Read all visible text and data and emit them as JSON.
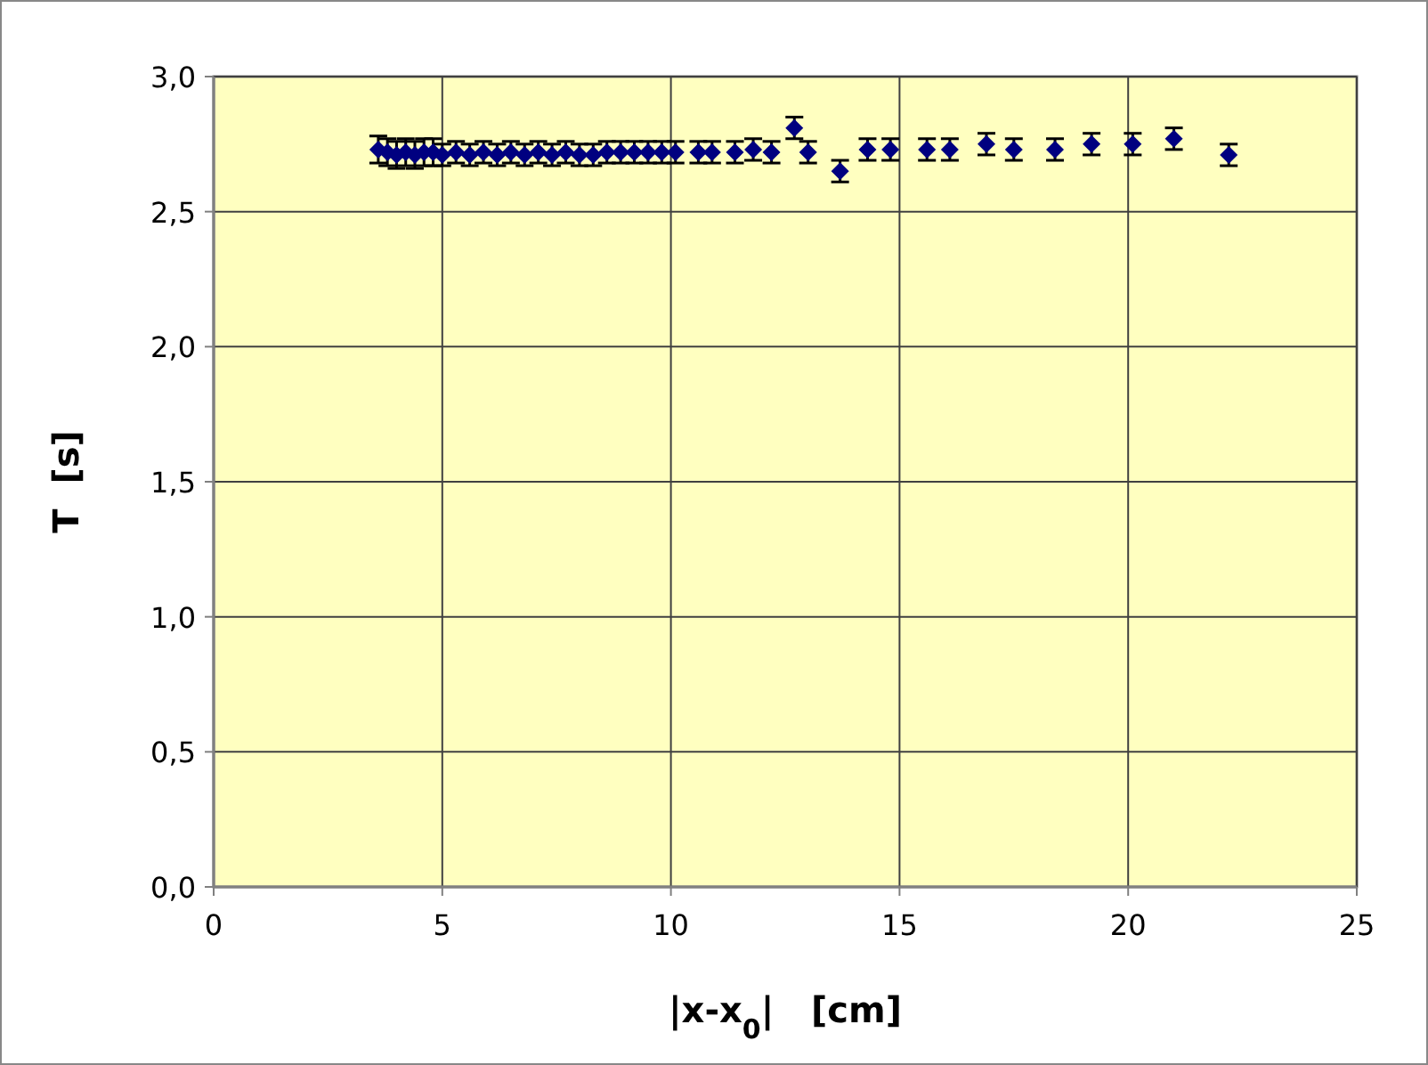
{
  "chart_data": {
    "type": "scatter",
    "xlabel": "|x-x$_{0}$|   [cm]",
    "ylabel": "T  [s]",
    "x": [
      3.6,
      3.8,
      4.0,
      4.2,
      4.4,
      4.6,
      4.8,
      5.0,
      5.3,
      5.6,
      5.9,
      6.2,
      6.5,
      6.8,
      7.1,
      7.4,
      7.7,
      8.0,
      8.3,
      8.6,
      8.9,
      9.2,
      9.5,
      9.8,
      10.1,
      10.6,
      10.9,
      11.4,
      11.8,
      12.2,
      12.7,
      13.0,
      13.7,
      14.3,
      14.8,
      15.6,
      16.1,
      16.9,
      17.5,
      18.4,
      19.2,
      20.1,
      21.0,
      22.2
    ],
    "values": [
      2.73,
      2.72,
      2.71,
      2.72,
      2.71,
      2.72,
      2.72,
      2.71,
      2.72,
      2.71,
      2.72,
      2.71,
      2.72,
      2.71,
      2.72,
      2.71,
      2.72,
      2.71,
      2.71,
      2.72,
      2.72,
      2.72,
      2.72,
      2.72,
      2.72,
      2.72,
      2.72,
      2.72,
      2.73,
      2.72,
      2.81,
      2.72,
      2.65,
      2.73,
      2.73,
      2.73,
      2.73,
      2.75,
      2.73,
      2.73,
      2.75,
      2.75,
      2.77,
      2.71
    ],
    "errors": [
      0.05,
      0.05,
      0.05,
      0.05,
      0.05,
      0.05,
      0.05,
      0.04,
      0.04,
      0.04,
      0.04,
      0.04,
      0.04,
      0.04,
      0.04,
      0.04,
      0.04,
      0.04,
      0.04,
      0.04,
      0.04,
      0.04,
      0.04,
      0.04,
      0.04,
      0.04,
      0.04,
      0.04,
      0.04,
      0.04,
      0.04,
      0.04,
      0.04,
      0.04,
      0.04,
      0.04,
      0.04,
      0.04,
      0.04,
      0.04,
      0.04,
      0.04,
      0.04,
      0.04
    ],
    "color": "#000080",
    "marker": "diamond",
    "grid": true,
    "xlim": [
      0,
      25
    ],
    "xticks": [
      0,
      5,
      10,
      15,
      20,
      25
    ],
    "ylim": [
      0,
      3
    ],
    "yticks": [
      {
        "value": 0,
        "label": "0,0"
      },
      {
        "value": 0.5,
        "label": "0,5"
      },
      {
        "value": 1,
        "label": "1,0"
      },
      {
        "value": 1.5,
        "label": "1,5"
      },
      {
        "value": 2,
        "label": "2,0"
      },
      {
        "value": 2.5,
        "label": "2,5"
      },
      {
        "value": 3,
        "label": "3,0"
      }
    ]
  }
}
